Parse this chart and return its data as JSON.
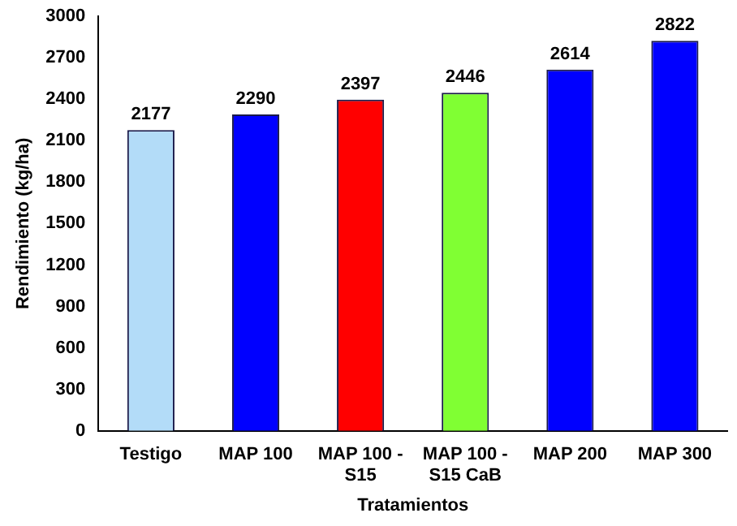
{
  "chart_data": {
    "type": "bar",
    "xlabel": "Tratamientos",
    "ylabel": "Rendimiento (kg/ha)",
    "categories": [
      "Testigo",
      "MAP 100",
      "MAP 100 - S15",
      "MAP 100 - S15 CaB",
      "MAP 200",
      "MAP 300"
    ],
    "values": [
      2177,
      2290,
      2397,
      2446,
      2614,
      2822
    ],
    "colors": [
      "#b3dcf8",
      "#0000ff",
      "#ff0000",
      "#80ff33",
      "#0000ff",
      "#0000ff"
    ],
    "ylim": [
      0,
      3000
    ],
    "yticks": [
      0,
      300,
      600,
      900,
      1200,
      1500,
      1800,
      2100,
      2400,
      2700,
      3000
    ],
    "grid": false,
    "legend": false,
    "data_labels": true
  }
}
